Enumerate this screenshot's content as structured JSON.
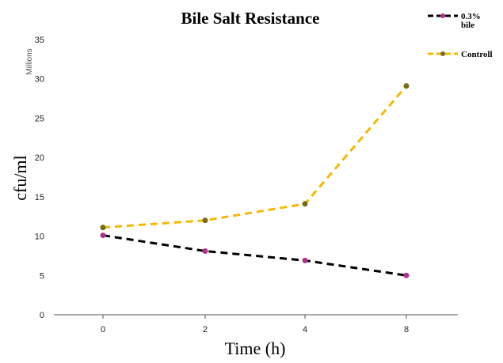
{
  "chart_data": {
    "type": "line",
    "title": "Bile Salt Resistance",
    "xlabel": "Time (h)",
    "ylabel": "cfu/ml",
    "y_unit_label": "Millions",
    "categories": [
      "0",
      "2",
      "4",
      "8"
    ],
    "y_ticks": [
      "0",
      "5",
      "10",
      "15",
      "20",
      "25",
      "30",
      "35"
    ],
    "ylim": [
      0,
      35
    ],
    "grid": false,
    "legend_position": "top-right",
    "series": [
      {
        "name": "0.3% bile",
        "name_lines": [
          "0.3%",
          "bile"
        ],
        "values": [
          10.1,
          8.1,
          6.9,
          5.0
        ],
        "line_color": "#000000",
        "marker_color": "#b0308c"
      },
      {
        "name": "Controll",
        "name_lines": [
          "Controll"
        ],
        "values": [
          11.1,
          12.0,
          14.1,
          29.1
        ],
        "line_color": "#f5b800",
        "marker_color": "#7a6a14"
      }
    ]
  }
}
